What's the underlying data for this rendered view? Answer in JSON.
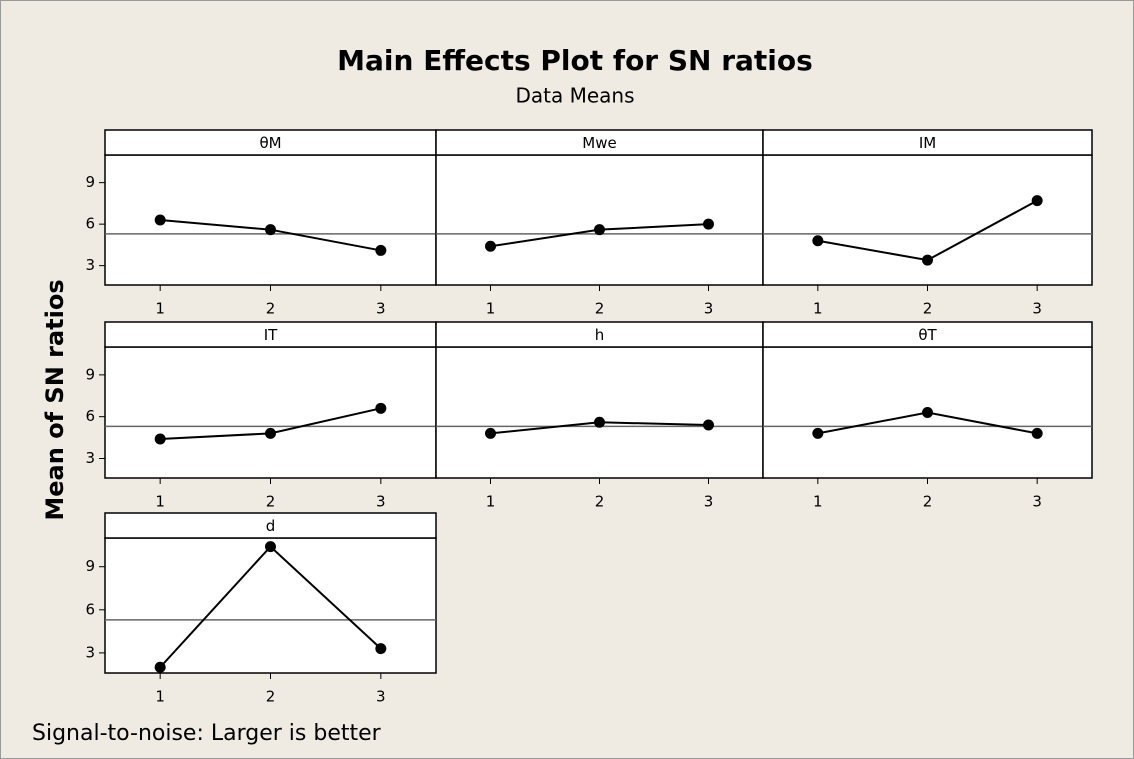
{
  "header": {
    "title": "Main Effects Plot for SN ratios",
    "subtitle": "Data Means"
  },
  "y_axis_label": "Mean of SN ratios",
  "footnote": "Signal-to-noise: Larger is better",
  "chart_data": [
    {
      "type": "line",
      "title": "θM",
      "x": [
        1,
        2,
        3
      ],
      "values": [
        6.3,
        5.6,
        4.1
      ],
      "xlim": [
        0.5,
        3.5
      ],
      "xticks": [
        1,
        2,
        3
      ],
      "ylim": [
        1.6,
        11.0
      ],
      "yticks": [
        3,
        6,
        9
      ],
      "reference_line": 5.3,
      "color": "#000000"
    },
    {
      "type": "line",
      "title": "Mwe",
      "x": [
        1,
        2,
        3
      ],
      "values": [
        4.4,
        5.6,
        6.0
      ],
      "xlim": [
        0.5,
        3.5
      ],
      "xticks": [
        1,
        2,
        3
      ],
      "ylim": [
        1.6,
        11.0
      ],
      "yticks": [
        3,
        6,
        9
      ],
      "reference_line": 5.3,
      "color": "#000000"
    },
    {
      "type": "line",
      "title": "IM",
      "x": [
        1,
        2,
        3
      ],
      "values": [
        4.8,
        3.4,
        7.7
      ],
      "xlim": [
        0.5,
        3.5
      ],
      "xticks": [
        1,
        2,
        3
      ],
      "ylim": [
        1.6,
        11.0
      ],
      "yticks": [
        3,
        6,
        9
      ],
      "reference_line": 5.3,
      "color": "#000000"
    },
    {
      "type": "line",
      "title": "IT",
      "x": [
        1,
        2,
        3
      ],
      "values": [
        4.4,
        4.8,
        6.6
      ],
      "xlim": [
        0.5,
        3.5
      ],
      "xticks": [
        1,
        2,
        3
      ],
      "ylim": [
        1.6,
        11.0
      ],
      "yticks": [
        3,
        6,
        9
      ],
      "reference_line": 5.3,
      "color": "#000000"
    },
    {
      "type": "line",
      "title": "h",
      "x": [
        1,
        2,
        3
      ],
      "values": [
        4.8,
        5.6,
        5.4
      ],
      "xlim": [
        0.5,
        3.5
      ],
      "xticks": [
        1,
        2,
        3
      ],
      "ylim": [
        1.6,
        11.0
      ],
      "yticks": [
        3,
        6,
        9
      ],
      "reference_line": 5.3,
      "color": "#000000"
    },
    {
      "type": "line",
      "title": "θT",
      "x": [
        1,
        2,
        3
      ],
      "values": [
        4.8,
        6.3,
        4.8
      ],
      "xlim": [
        0.5,
        3.5
      ],
      "xticks": [
        1,
        2,
        3
      ],
      "ylim": [
        1.6,
        11.0
      ],
      "yticks": [
        3,
        6,
        9
      ],
      "reference_line": 5.3,
      "color": "#000000"
    },
    {
      "type": "line",
      "title": "d",
      "x": [
        1,
        2,
        3
      ],
      "values": [
        2.0,
        10.4,
        3.3
      ],
      "xlim": [
        0.5,
        3.5
      ],
      "xticks": [
        1,
        2,
        3
      ],
      "ylim": [
        1.6,
        11.0
      ],
      "yticks": [
        3,
        6,
        9
      ],
      "reference_line": 5.3,
      "color": "#000000"
    }
  ]
}
